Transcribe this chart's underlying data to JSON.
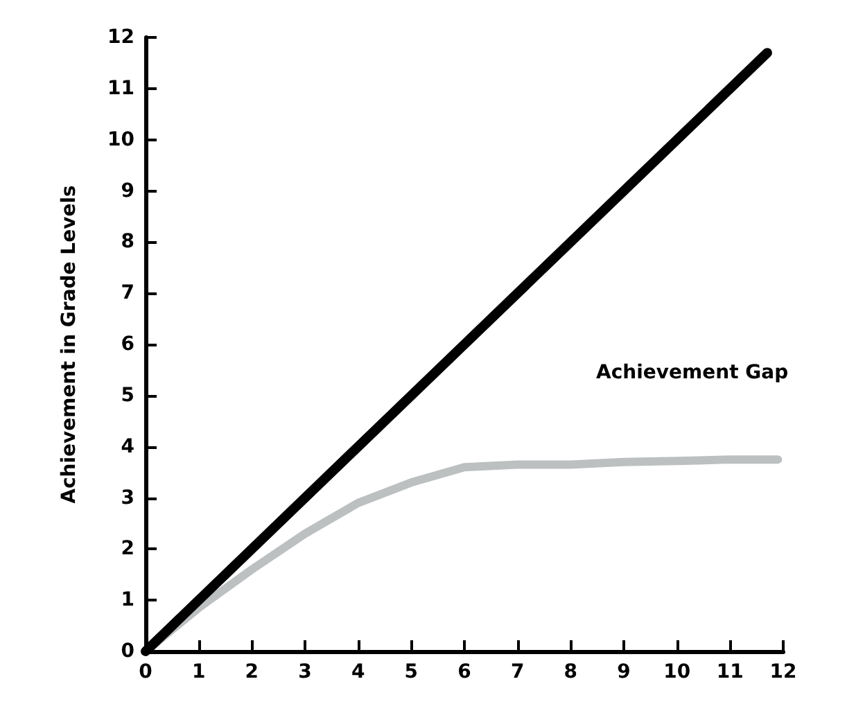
{
  "chart_data": {
    "type": "line",
    "ylabel": "Achievement in Grade Levels",
    "annotations": [
      "Achievement Gap"
    ],
    "xlim": [
      0,
      12
    ],
    "xticks": [
      0,
      1,
      2,
      3,
      4,
      5,
      6,
      7,
      8,
      9,
      10,
      11,
      12
    ],
    "ylim": [
      0,
      12
    ],
    "yticks": [
      0,
      1,
      2,
      3,
      4,
      5,
      6,
      7,
      8,
      9,
      10,
      11,
      12
    ],
    "grid": false,
    "marker": "none",
    "line_style": "solid",
    "series": [
      {
        "color": "#000000",
        "x": [
          0,
          11.7
        ],
        "values": [
          0,
          11.7
        ]
      },
      {
        "color": "#bcc0c1",
        "x": [
          0,
          1,
          2,
          3,
          4,
          5,
          6,
          7,
          8,
          9,
          10,
          11,
          11.9
        ],
        "values": [
          0,
          0.85,
          1.6,
          2.3,
          2.9,
          3.3,
          3.6,
          3.65,
          3.65,
          3.7,
          3.72,
          3.75,
          3.75
        ]
      }
    ]
  }
}
